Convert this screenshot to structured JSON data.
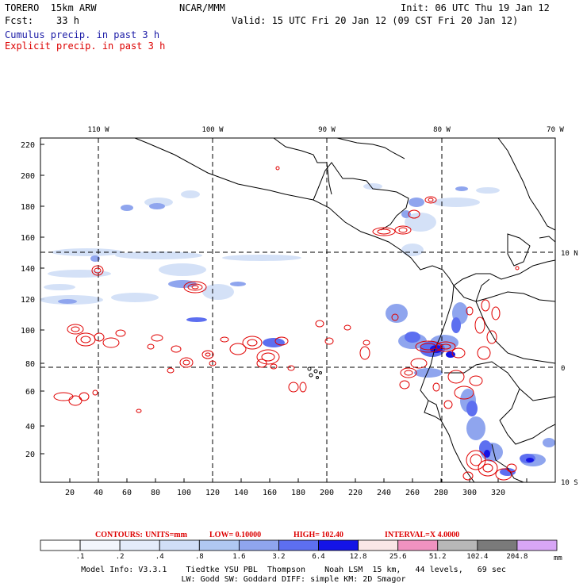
{
  "header": {
    "model": "TORERO  15km ARW",
    "org": "NCAR/MMM",
    "init": "Init: 06 UTC Thu 19 Jan 12",
    "fcst": "Fcst:    33 h",
    "valid": "Valid: 15 UTC Fri 20 Jan 12 (09 CST Fri 20 Jan 12)",
    "field1": "Cumulus precip. in past 3 h",
    "field2": "Explicit precip. in past 3 h"
  },
  "colors": {
    "field1": "#1a1aa6",
    "field2": "#dd0000",
    "contour": "#e00000",
    "coast": "#000000"
  },
  "map": {
    "top_lon_labels": [
      "110 W",
      "100 W",
      "90 W",
      "80 W",
      "70 W"
    ],
    "right_lat_labels": [
      "10 N",
      "0",
      "10 S"
    ],
    "left_ticks": [
      "20",
      "40",
      "60",
      "80",
      "100",
      "120",
      "140",
      "160",
      "180",
      "200",
      "220"
    ],
    "bottom_ticks": [
      "20",
      "40",
      "60",
      "80",
      "100",
      "120",
      "140",
      "160",
      "180",
      "200",
      "220",
      "240",
      "260",
      "280",
      "300",
      "320"
    ]
  },
  "contours_text": {
    "label": "CONTOURS:",
    "units": "UNITS=mm",
    "low": "LOW= 0.10000",
    "high": "HIGH=  102.40",
    "interval": "INTERVAL=X  4.0000"
  },
  "colorbar": {
    "labels": [
      ".1",
      ".2",
      ".4",
      ".8",
      "1.6",
      "3.2",
      "6.4",
      "12.8",
      "25.6",
      "51.2",
      "102.4",
      "204.8"
    ],
    "unit": "mm",
    "colors": [
      "#ffffff",
      "#f3f6fd",
      "#e4ecfb",
      "#d0def7",
      "#b0c8f2",
      "#8fa5ee",
      "#5d6ff0",
      "#1414e6",
      "#fae6e6",
      "#f092c0",
      "#b8b8b8",
      "#7a7a7a",
      "#d8a6f6"
    ]
  },
  "footer": {
    "line1": "Model Info: V3.3.1    Tiedtke YSU PBL  Thompson    Noah LSM  15 km,   44 levels,   69 sec",
    "line2": "LW: Godd SW: Goddard DIFF: simple KM: 2D Smagor"
  }
}
